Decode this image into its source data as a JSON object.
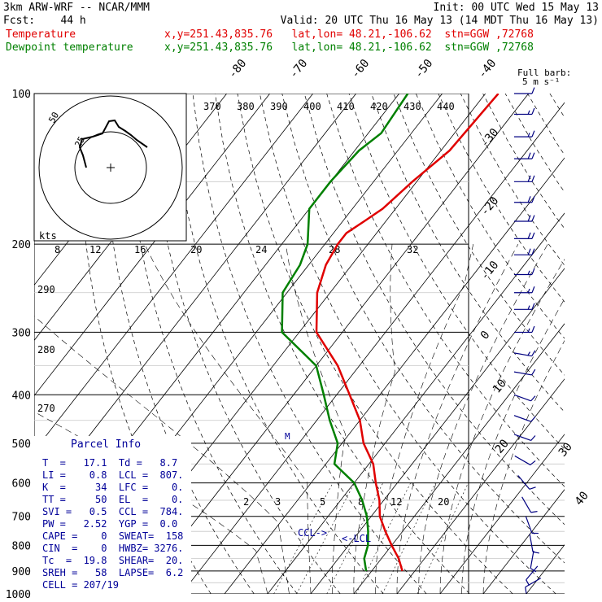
{
  "header": {
    "line1_left": "3km ARW-WRF -- NCAR/MMM",
    "line1_right": "Init: 00 UTC Wed 15 May 13",
    "line2_left": "Fcst:    44 h",
    "line2_right": "Valid: 20 UTC Thu 16 May 13 (14 MDT Thu 16 May 13)",
    "temp_label": "Temperature",
    "temp_info": "x,y=251.43,835.76   lat,lon= 48.21,-106.62  stn=GGW ,72768",
    "dew_label": "Dewpoint temperature",
    "dew_info": "x,y=251.43,835.76   lat,lon= 48.21,-106.62  stn=GGW ,72768"
  },
  "wind_legend": {
    "line1": "Full barb:",
    "line2": "5 m s⁻¹"
  },
  "colors": {
    "temperature": "#e00000",
    "dewpoint": "#008000",
    "parcel_text": "#000099",
    "barbs": "#000080",
    "grid": "#000000"
  },
  "chart_data": {
    "type": "line",
    "title": "",
    "y_axis": "pressure (hPa), log scale",
    "ylim": [
      1000,
      100
    ],
    "pressure_ticks": [
      100,
      200,
      300,
      400,
      500,
      600,
      700,
      800,
      900,
      1000
    ],
    "isotherm_labels_top": [
      "-80",
      "-70",
      "-60",
      "-50",
      "-40"
    ],
    "isotherm_labels_side": [
      "-30",
      "-20",
      "-10",
      "0",
      "10",
      "20",
      "30",
      "40"
    ],
    "theta_labels": [
      "370",
      "380",
      "390",
      "400",
      "410",
      "420",
      "430",
      "440"
    ],
    "dry_adiabat_labels": [
      "290",
      "280",
      "270"
    ],
    "mixing_ratio_labels": [
      "2",
      "3",
      "5",
      "8",
      "12",
      "20"
    ],
    "series": [
      {
        "name": "Temperature",
        "points": [
          [
            100,
            -47
          ],
          [
            130,
            -48
          ],
          [
            150,
            -51
          ],
          [
            170,
            -53
          ],
          [
            180,
            -55
          ],
          [
            190,
            -57
          ],
          [
            200,
            -57
          ],
          [
            220,
            -56
          ],
          [
            250,
            -53
          ],
          [
            300,
            -46
          ],
          [
            350,
            -35
          ],
          [
            400,
            -27
          ],
          [
            450,
            -20
          ],
          [
            500,
            -15
          ],
          [
            550,
            -9
          ],
          [
            600,
            -5
          ],
          [
            650,
            -1
          ],
          [
            700,
            2
          ],
          [
            750,
            6
          ],
          [
            800,
            10
          ],
          [
            850,
            14
          ],
          [
            900,
            17.1
          ]
        ]
      },
      {
        "name": "Dewpoint temperature",
        "points": [
          [
            100,
            -68
          ],
          [
            120,
            -67
          ],
          [
            130,
            -69
          ],
          [
            150,
            -70
          ],
          [
            170,
            -70
          ],
          [
            200,
            -64
          ],
          [
            220,
            -62
          ],
          [
            250,
            -61
          ],
          [
            300,
            -54
          ],
          [
            350,
            -40
          ],
          [
            400,
            -33
          ],
          [
            450,
            -27
          ],
          [
            500,
            -21
          ],
          [
            550,
            -18
          ],
          [
            600,
            -10
          ],
          [
            650,
            -5
          ],
          [
            700,
            -1
          ],
          [
            750,
            2
          ],
          [
            800,
            4.5
          ],
          [
            850,
            6
          ],
          [
            900,
            8.7
          ]
        ]
      }
    ],
    "wind_barbs": [
      {
        "p": 100,
        "spd": 10,
        "dir": 270
      },
      {
        "p": 110,
        "spd": 15,
        "dir": 270
      },
      {
        "p": 122,
        "spd": 15,
        "dir": 270
      },
      {
        "p": 135,
        "spd": 20,
        "dir": 270
      },
      {
        "p": 150,
        "spd": 20,
        "dir": 270
      },
      {
        "p": 165,
        "spd": 20,
        "dir": 270
      },
      {
        "p": 180,
        "spd": 20,
        "dir": 270
      },
      {
        "p": 195,
        "spd": 20,
        "dir": 270
      },
      {
        "p": 210,
        "spd": 20,
        "dir": 270
      },
      {
        "p": 230,
        "spd": 15,
        "dir": 270
      },
      {
        "p": 250,
        "spd": 15,
        "dir": 270
      },
      {
        "p": 270,
        "spd": 15,
        "dir": 270
      },
      {
        "p": 300,
        "spd": 15,
        "dir": 270
      },
      {
        "p": 330,
        "spd": 15,
        "dir": 280
      },
      {
        "p": 360,
        "spd": 10,
        "dir": 280
      },
      {
        "p": 400,
        "spd": 10,
        "dir": 290
      },
      {
        "p": 440,
        "spd": 10,
        "dir": 290
      },
      {
        "p": 480,
        "spd": 10,
        "dir": 290
      },
      {
        "p": 530,
        "spd": 10,
        "dir": 300
      },
      {
        "p": 580,
        "spd": 10,
        "dir": 320
      },
      {
        "p": 640,
        "spd": 10,
        "dir": 330
      },
      {
        "p": 700,
        "spd": 10,
        "dir": 340
      },
      {
        "p": 760,
        "spd": 10,
        "dir": 350
      },
      {
        "p": 820,
        "spd": 10,
        "dir": 10
      },
      {
        "p": 880,
        "spd": 10,
        "dir": 40
      },
      {
        "p": 930,
        "spd": 10,
        "dir": 60
      }
    ],
    "hodograph": {
      "ring_labels": [
        "25",
        "50"
      ],
      "unit_label": "kts",
      "path": [
        [
          0,
          0
        ],
        [
          -4,
          -15
        ],
        [
          -8,
          -25
        ],
        [
          -5,
          -35
        ],
        [
          8,
          -38
        ],
        [
          20,
          -42
        ],
        [
          28,
          -57
        ],
        [
          35,
          -58
        ],
        [
          40,
          -50
        ],
        [
          48,
          -45
        ],
        [
          55,
          -40
        ],
        [
          62,
          -34
        ],
        [
          75,
          -25
        ]
      ]
    }
  },
  "parcel_info": {
    "title": "Parcel Info",
    "rows": [
      "T  =   17.1  Td =   8.7",
      "LI =    0.8  LCL =  807.",
      "K  =     34  LFC =    0.",
      "TT =     50  EL  =    0.",
      "SVI =   0.5  CCL =  784.",
      "PW =   2.52  YGP =  0.0",
      "CAPE =    0  SWEAT=  158",
      "CIN  =    0  HWBZ= 3276.",
      "Tc  =  19.8  SHEAR=  20.",
      "SREH =   58  LAPSE=  6.2",
      "CELL = 207/19"
    ]
  },
  "markers": {
    "ccl": "CCL->",
    "lcl": "<-LCL",
    "mid": "M"
  }
}
